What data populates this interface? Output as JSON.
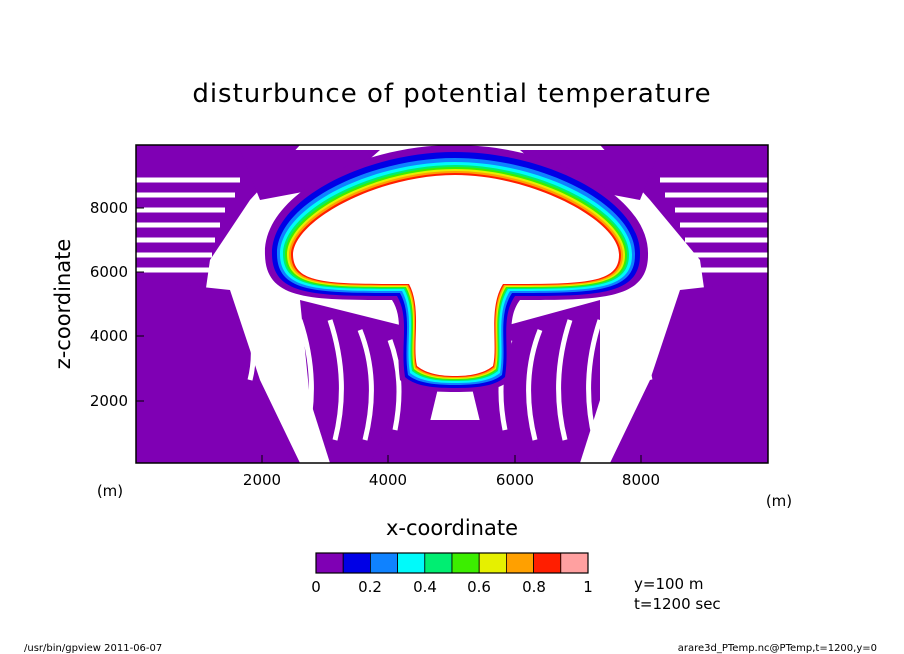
{
  "chart_data": {
    "type": "heatmap",
    "title": "disturbunce of potential temperature",
    "xlabel": "x-coordinate",
    "ylabel": "z-coordinate",
    "x_unit": "(m)",
    "y_unit": "(m)",
    "xlim": [
      0,
      10000
    ],
    "ylim": [
      0,
      10000
    ],
    "x_ticks": [
      2000,
      4000,
      6000,
      8000
    ],
    "y_ticks": [
      2000,
      4000,
      6000,
      8000
    ],
    "x_tick_labels": [
      "2000",
      "4000",
      "6000",
      "8000"
    ],
    "y_tick_labels": [
      "2000",
      "4000",
      "6000",
      "8000"
    ],
    "colorbar": {
      "levels": [
        0,
        0.1,
        0.2,
        0.3,
        0.4,
        0.5,
        0.6,
        0.7,
        0.8,
        0.9,
        1.0
      ],
      "colors": [
        "#7f00b4",
        "#0000e6",
        "#0f82ff",
        "#00fafa",
        "#00ee72",
        "#3cee00",
        "#e6f000",
        "#ffa000",
        "#ff1e00",
        "#ffa0a0"
      ],
      "tick_labels": [
        "0",
        "0.2",
        "0.4",
        "0.6",
        "0.8",
        "1"
      ]
    },
    "annotations": [
      "y=100 m",
      "t=1200 sec"
    ]
  },
  "footer": {
    "left": "/usr/bin/gpview  2011-06-07",
    "right": "arare3d_PTemp.nc@PTemp,t=1200,y=0"
  }
}
